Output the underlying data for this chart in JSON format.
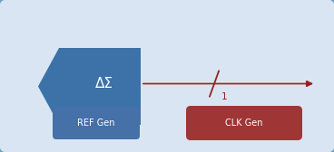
{
  "bg_outer": "#c9d8ea",
  "bg_inner": "#d9e5f2",
  "outer_border_color": "#6e9ec0",
  "sigma_delta_color": "#3c72a8",
  "sigma_delta_text": "ΔΣ",
  "sigma_delta_text_color": "#ffffff",
  "ref_gen_color": "#4570a8",
  "ref_gen_text": "REF Gen",
  "ref_gen_text_color": "#ffffff",
  "clk_gen_color": "#a03535",
  "clk_gen_text": "CLK Gen",
  "clk_gen_text_color": "#ffffff",
  "arrow_color": "#992020",
  "arrow_label": "1",
  "arrow_label_color": "#992020",
  "fig_width": 3.68,
  "fig_height": 1.68,
  "dpi": 100
}
